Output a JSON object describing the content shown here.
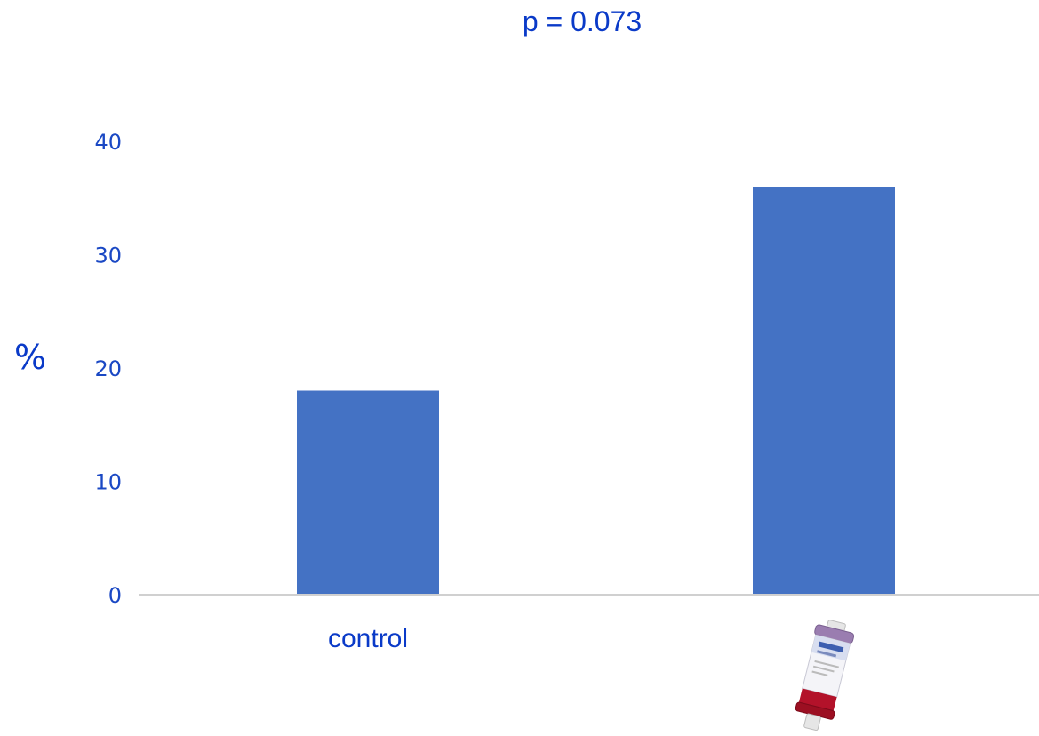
{
  "chart_data": {
    "type": "bar",
    "categories": [
      "control",
      ""
    ],
    "values": [
      18,
      36
    ],
    "title": "",
    "annotation": "p = 0.073",
    "xlabel": "",
    "ylabel": "%",
    "ylim": [
      0,
      40
    ],
    "yticks": [
      "0",
      "10",
      "20",
      "30",
      "40"
    ],
    "grid": false,
    "bar_color": "#4472c4",
    "axis_color": "#d0d0d0",
    "text_color": "#0a3ac8",
    "second_category_icon": "cytosorb-cartridge-image"
  }
}
